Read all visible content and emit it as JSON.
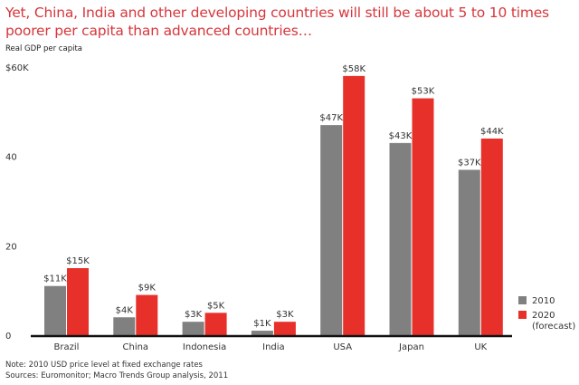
{
  "title": "Yet, China, India and other developing countries will still be about 5 to 10 times poorer per capita than advanced countries…",
  "notes": [
    "Note: 2010 USD price level at fixed exchange rates",
    "Sources: Euromonitor; Macro Trends Group analysis, 2011"
  ],
  "colors": {
    "2010": "#808080",
    "2020": "#e8302a",
    "title": "#d6373c",
    "axis": "#111111"
  },
  "chart_data": {
    "type": "bar",
    "title": "Yet, China, India and other developing countries will still be about 5 to 10 times poorer per capita than advanced countries…",
    "xlabel": "",
    "ylabel": "Real GDP per capita",
    "ylim": [
      0,
      60
    ],
    "yticks": [
      0,
      20,
      40,
      60
    ],
    "ytick_labels": [
      "0",
      "20",
      "40",
      "$60K"
    ],
    "grid": false,
    "legend_position": "bottom-right",
    "categories": [
      "Brazil",
      "China",
      "Indonesia",
      "India",
      "USA",
      "Japan",
      "UK"
    ],
    "series": [
      {
        "name": "2010",
        "legend_label": [
          "2010"
        ],
        "color": "#808080",
        "values": [
          11,
          4,
          3,
          1,
          47,
          43,
          37
        ],
        "labels": [
          "$11K",
          "$4K",
          "$3K",
          "$1K",
          "$47K",
          "$43K",
          "$37K"
        ]
      },
      {
        "name": "2020 (forecast)",
        "legend_label": [
          "2020",
          "(forecast)"
        ],
        "color": "#e8302a",
        "values": [
          15,
          9,
          5,
          3,
          58,
          53,
          44
        ],
        "labels": [
          "$15K",
          "$9K",
          "$5K",
          "$3K",
          "$58K",
          "$53K",
          "$44K"
        ]
      }
    ]
  }
}
